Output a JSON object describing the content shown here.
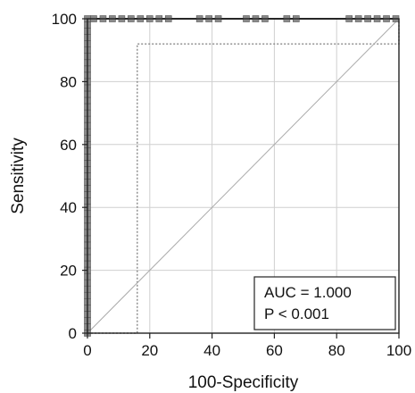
{
  "chart_data": {
    "type": "line",
    "title": "",
    "xlabel": "100-Specificity",
    "ylabel": "Sensitivity",
    "xlim": [
      0,
      100
    ],
    "ylim": [
      0,
      100
    ],
    "xticks": [
      "0",
      "20",
      "40",
      "60",
      "80",
      "100"
    ],
    "yticks": [
      "0",
      "20",
      "40",
      "60",
      "80",
      "100"
    ],
    "grid": true,
    "colors": {
      "roc": "#333333",
      "marker": "#8a8a8a",
      "ci": "#888888",
      "diagonal": "#aaaaaa",
      "grid": "#cfcfcf"
    },
    "series": [
      {
        "values": [
          [
            0,
            0
          ],
          [
            0,
            100
          ],
          [
            100,
            100
          ]
        ],
        "markers_y_at_x0": [
          0,
          2,
          4,
          6,
          8,
          10,
          12,
          14,
          16,
          18,
          20,
          22,
          24,
          26,
          28,
          30,
          32,
          34,
          36,
          38,
          40,
          42,
          44,
          46,
          48,
          50,
          52,
          54,
          56,
          58,
          60,
          62,
          64,
          66,
          68,
          70,
          72,
          74,
          76,
          78,
          80,
          82,
          84,
          86,
          88,
          90,
          92,
          94,
          96,
          98,
          100
        ],
        "markers_x_at_y100": [
          2,
          5,
          8,
          11,
          14,
          17,
          20,
          23,
          26,
          36,
          39,
          42,
          51,
          54,
          57,
          64,
          67,
          84,
          87,
          90,
          93,
          96,
          99
        ]
      },
      {
        "values": [
          [
            0,
            0
          ],
          [
            16,
            0
          ],
          [
            16,
            92
          ],
          [
            100,
            92
          ],
          [
            100,
            100
          ]
        ]
      },
      {
        "values": [
          [
            0,
            0
          ],
          [
            100,
            100
          ]
        ]
      }
    ],
    "annotation": {
      "line1": "AUC = 1.000",
      "line2": "P < 0.001"
    }
  }
}
